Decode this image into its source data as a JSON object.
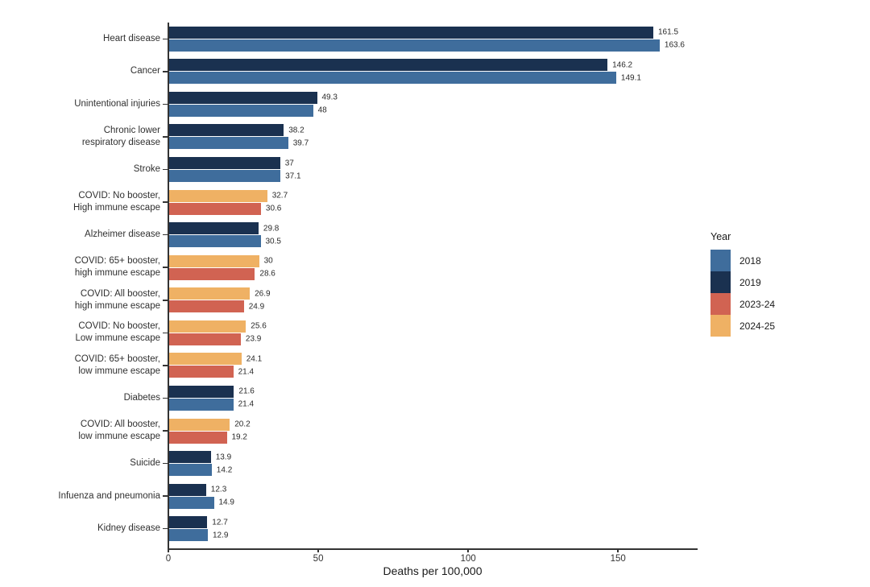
{
  "chart_data": {
    "type": "bar",
    "orientation": "horizontal",
    "title": "",
    "xlabel": "Deaths per 100,000",
    "ylabel": "",
    "xlim": [
      0,
      176
    ],
    "xticks": [
      "0",
      "50",
      "100",
      "150"
    ],
    "xtick_values": [
      0,
      50,
      100,
      150
    ],
    "grid": "off",
    "legend": {
      "title": "Year",
      "position": "right",
      "entries": [
        {
          "label": "2018",
          "color": "#3F6D9C"
        },
        {
          "label": "2019",
          "color": "#1A3150"
        },
        {
          "label": "2023-24",
          "color": "#D16352"
        },
        {
          "label": "2024-25",
          "color": "#EFB164"
        }
      ]
    },
    "rows": [
      {
        "category": "Heart disease",
        "bars": [
          {
            "series": "2019",
            "value": 161.5,
            "label": "161.5"
          },
          {
            "series": "2018",
            "value": 163.6,
            "label": "163.6"
          }
        ]
      },
      {
        "category": "Cancer",
        "bars": [
          {
            "series": "2019",
            "value": 146.2,
            "label": "146.2"
          },
          {
            "series": "2018",
            "value": 149.1,
            "label": "149.1"
          }
        ]
      },
      {
        "category": "Unintentional injuries",
        "bars": [
          {
            "series": "2019",
            "value": 49.3,
            "label": "49.3"
          },
          {
            "series": "2018",
            "value": 48,
            "label": "48"
          }
        ]
      },
      {
        "category": "Chronic lower\nrespiratory disease",
        "bars": [
          {
            "series": "2019",
            "value": 38.2,
            "label": "38.2"
          },
          {
            "series": "2018",
            "value": 39.7,
            "label": "39.7"
          }
        ]
      },
      {
        "category": "Stroke",
        "bars": [
          {
            "series": "2019",
            "value": 37,
            "label": "37"
          },
          {
            "series": "2018",
            "value": 37.1,
            "label": "37.1"
          }
        ]
      },
      {
        "category": "COVID: No booster,\nHigh immune escape",
        "bars": [
          {
            "series": "2024-25",
            "value": 32.7,
            "label": "32.7"
          },
          {
            "series": "2023-24",
            "value": 30.6,
            "label": "30.6"
          }
        ]
      },
      {
        "category": "Alzheimer disease",
        "bars": [
          {
            "series": "2019",
            "value": 29.8,
            "label": "29.8"
          },
          {
            "series": "2018",
            "value": 30.5,
            "label": "30.5"
          }
        ]
      },
      {
        "category": "COVID: 65+ booster,\nhigh immune escape",
        "bars": [
          {
            "series": "2024-25",
            "value": 30,
            "label": "30"
          },
          {
            "series": "2023-24",
            "value": 28.6,
            "label": "28.6"
          }
        ]
      },
      {
        "category": "COVID: All booster,\nhigh immune escape",
        "bars": [
          {
            "series": "2024-25",
            "value": 26.9,
            "label": "26.9"
          },
          {
            "series": "2023-24",
            "value": 24.9,
            "label": "24.9"
          }
        ]
      },
      {
        "category": "COVID: No booster,\nLow immune escape",
        "bars": [
          {
            "series": "2024-25",
            "value": 25.6,
            "label": "25.6"
          },
          {
            "series": "2023-24",
            "value": 23.9,
            "label": "23.9"
          }
        ]
      },
      {
        "category": "COVID: 65+ booster,\nlow immune escape",
        "bars": [
          {
            "series": "2024-25",
            "value": 24.1,
            "label": "24.1"
          },
          {
            "series": "2023-24",
            "value": 21.4,
            "label": "21.4"
          }
        ]
      },
      {
        "category": "Diabetes",
        "bars": [
          {
            "series": "2019",
            "value": 21.6,
            "label": "21.6"
          },
          {
            "series": "2018",
            "value": 21.4,
            "label": "21.4"
          }
        ]
      },
      {
        "category": "COVID: All booster,\nlow immune escape",
        "bars": [
          {
            "series": "2024-25",
            "value": 20.2,
            "label": "20.2"
          },
          {
            "series": "2023-24",
            "value": 19.2,
            "label": "19.2"
          }
        ]
      },
      {
        "category": "Suicide",
        "bars": [
          {
            "series": "2019",
            "value": 13.9,
            "label": "13.9"
          },
          {
            "series": "2018",
            "value": 14.2,
            "label": "14.2"
          }
        ]
      },
      {
        "category": "Infuenza and pneumonia",
        "bars": [
          {
            "series": "2019",
            "value": 12.3,
            "label": "12.3"
          },
          {
            "series": "2018",
            "value": 14.9,
            "label": "14.9"
          }
        ]
      },
      {
        "category": "Kidney disease",
        "bars": [
          {
            "series": "2019",
            "value": 12.7,
            "label": "12.7"
          },
          {
            "series": "2018",
            "value": 12.9,
            "label": "12.9"
          }
        ]
      }
    ]
  }
}
